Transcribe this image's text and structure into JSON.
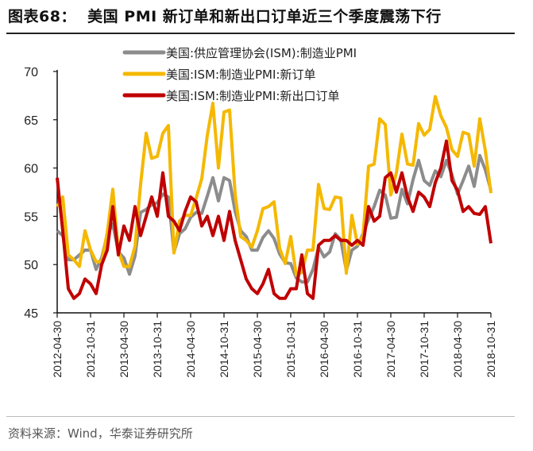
{
  "title": "图表68：  美国 PMI 新订单和新出口订单近三个季度震荡下行",
  "source": "资料来源：Wind，华泰证券研究所",
  "chart_data": {
    "type": "line",
    "title": "",
    "xlabel": "",
    "ylabel": "",
    "ylim": [
      45,
      70
    ],
    "yticks": [
      "45",
      "50",
      "55",
      "60",
      "65",
      "70"
    ],
    "grid": false,
    "legend_position": "top-center",
    "x_start": "2012-04-30",
    "x_end": "2018-10-31",
    "frequency": "monthly",
    "xtick_labels": [
      "2012-04-30",
      "2012-10-31",
      "2013-04-30",
      "2013-10-31",
      "2014-04-30",
      "2014-10-31",
      "2015-04-30",
      "2015-10-31",
      "2016-04-30",
      "2016-10-31",
      "2017-04-30",
      "2017-10-31",
      "2018-04-30",
      "2018-10-31"
    ],
    "series": [
      {
        "name": "美国:供应管理协会(ISM):制造业PMI",
        "color": "#8c8c8c",
        "values": [
          53.5,
          53.0,
          50.5,
          50.5,
          51.0,
          51.5,
          51.5,
          49.5,
          50.7,
          53.1,
          54.2,
          51.3,
          50.7,
          49.0,
          50.9,
          55.4,
          55.7,
          56.2,
          56.4,
          57.3,
          57.0,
          51.3,
          53.2,
          53.7,
          54.9,
          55.4,
          55.3,
          57.1,
          59.0,
          56.6,
          59.0,
          58.7,
          55.5,
          53.5,
          52.9,
          51.5,
          51.5,
          52.8,
          53.5,
          52.7,
          51.1,
          50.2,
          50.1,
          48.6,
          48.2,
          48.2,
          49.5,
          51.8,
          50.8,
          51.3,
          53.2,
          52.6,
          49.4,
          51.5,
          51.9,
          53.2,
          54.7,
          56.0,
          57.7,
          57.2,
          54.8,
          54.9,
          57.8,
          56.3,
          58.8,
          60.8,
          58.7,
          58.2,
          59.7,
          59.1,
          60.8,
          59.3,
          57.3,
          58.7,
          60.2,
          58.1,
          61.3,
          59.8,
          57.7
        ]
      },
      {
        "name": "美国:ISM:制造业PMI:新订单",
        "color": "#f5b800",
        "values": [
          56.0,
          57.0,
          51.0,
          50.5,
          49.8,
          53.5,
          51.5,
          50.3,
          50.3,
          53.3,
          57.8,
          51.4,
          49.8,
          49.8,
          51.9,
          58.3,
          63.6,
          61.0,
          61.2,
          63.6,
          64.4,
          51.2,
          54.5,
          55.1,
          55.1,
          56.9,
          58.9,
          63.4,
          66.7,
          60.0,
          65.8,
          66.0,
          57.3,
          52.9,
          52.5,
          51.8,
          53.5,
          55.8,
          56.0,
          56.5,
          51.7,
          50.1,
          52.9,
          48.9,
          49.2,
          51.5,
          51.5,
          58.3,
          55.8,
          55.7,
          57.0,
          56.9,
          49.1,
          55.1,
          52.1,
          53.0,
          60.2,
          60.4,
          65.1,
          64.5,
          57.2,
          59.5,
          63.5,
          60.4,
          60.3,
          64.6,
          63.4,
          64.0,
          67.4,
          65.4,
          64.2,
          61.9,
          61.2,
          63.7,
          63.5,
          60.2,
          65.1,
          61.8,
          57.4
        ]
      },
      {
        "name": "美国:ISM:制造业PMI:新出口订单",
        "color": "#c00000",
        "values": [
          59.0,
          53.5,
          47.5,
          46.5,
          47.0,
          48.5,
          48.0,
          47.0,
          50.0,
          51.5,
          56.0,
          51.0,
          54.0,
          52.5,
          56.0,
          53.0,
          55.0,
          57.0,
          55.0,
          59.5,
          55.0,
          54.5,
          53.5,
          55.5,
          57.0,
          56.5,
          54.0,
          55.0,
          53.0,
          55.0,
          52.5,
          55.5,
          52.5,
          50.5,
          48.5,
          47.5,
          47.0,
          48.0,
          49.5,
          47.0,
          46.5,
          46.5,
          47.5,
          47.5,
          51.0,
          47.0,
          46.5,
          52.0,
          52.5,
          52.5,
          53.0,
          52.5,
          52.5,
          52.0,
          52.5,
          52.0,
          56.0,
          54.5,
          55.0,
          59.0,
          59.5,
          57.5,
          59.5,
          57.0,
          55.5,
          57.5,
          57.0,
          56.0,
          58.5,
          60.0,
          62.8,
          58.7,
          57.7,
          55.5,
          56.0,
          55.3,
          55.2,
          56.0,
          52.2
        ]
      }
    ]
  }
}
